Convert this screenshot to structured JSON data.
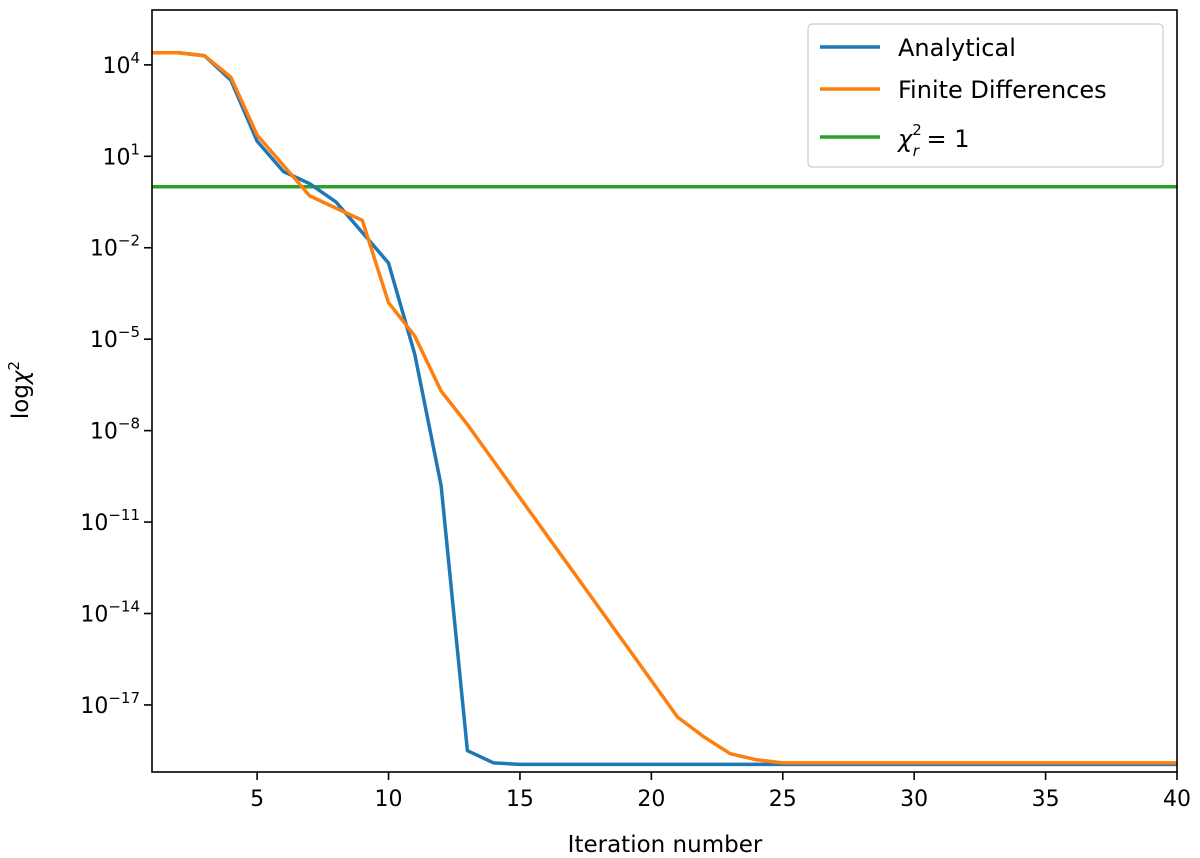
{
  "chart_data": {
    "type": "line",
    "title": "",
    "xlabel": "Iteration number",
    "ylabel": {
      "base": "log",
      "symbol": "χ",
      "exp": "2"
    },
    "y_scale": "log",
    "grid": false,
    "legend_placement": "top-right",
    "xlim": [
      1,
      40
    ],
    "ylim_exponent": [
      -19.2,
      5.8
    ],
    "x_ticks": [
      5,
      10,
      15,
      20,
      25,
      30,
      35,
      40
    ],
    "x_tick_labels": [
      "5",
      "10",
      "15",
      "20",
      "25",
      "30",
      "35",
      "40"
    ],
    "y_ticks": [
      {
        "exp": 4,
        "base": "10",
        "sup": "4"
      },
      {
        "exp": 1,
        "base": "10",
        "sup": "1"
      },
      {
        "exp": -2,
        "base": "10",
        "sup": "−2"
      },
      {
        "exp": -5,
        "base": "10",
        "sup": "−5"
      },
      {
        "exp": -8,
        "base": "10",
        "sup": "−8"
      },
      {
        "exp": -11,
        "base": "10",
        "sup": "−11"
      },
      {
        "exp": -14,
        "base": "10",
        "sup": "−14"
      },
      {
        "exp": -17,
        "base": "10",
        "sup": "−17"
      }
    ],
    "x": [
      1,
      2,
      3,
      4,
      5,
      6,
      7,
      8,
      9,
      10,
      11,
      12,
      13,
      14,
      15,
      16,
      17,
      18,
      19,
      20,
      21,
      22,
      23,
      24,
      25,
      26,
      27,
      28,
      29,
      30,
      31,
      32,
      33,
      34,
      35,
      36,
      37,
      38,
      39,
      40
    ],
    "series": [
      {
        "name": "Analytical",
        "color": "#1f77b4",
        "log10_values": [
          4.4,
          4.4,
          4.3,
          3.5,
          1.5,
          0.5,
          0.1,
          -0.5,
          -1.5,
          -2.5,
          -5.5,
          -9.8,
          -18.5,
          -18.9,
          -18.95,
          -18.95,
          -18.95,
          -18.95,
          -18.95,
          -18.95,
          -18.95,
          -18.95,
          -18.95,
          -18.95,
          -18.95,
          -18.95,
          -18.95,
          -18.95,
          -18.95,
          -18.95,
          -18.95,
          -18.95,
          -18.95,
          -18.95,
          -18.95,
          -18.95,
          -18.95,
          -18.95,
          -18.95,
          -18.95
        ]
      },
      {
        "name": "Finite Differences",
        "color": "#ff7f0e",
        "log10_values": [
          4.4,
          4.4,
          4.3,
          3.6,
          1.7,
          0.7,
          -0.3,
          -0.7,
          -1.1,
          -3.8,
          -4.9,
          -6.7,
          -7.8,
          -9.0,
          -10.2,
          -11.4,
          -12.6,
          -13.8,
          -15.0,
          -16.2,
          -17.4,
          -18.05,
          -18.6,
          -18.8,
          -18.9,
          -18.9,
          -18.9,
          -18.9,
          -18.9,
          -18.9,
          -18.9,
          -18.9,
          -18.9,
          -18.9,
          -18.9,
          -18.9,
          -18.9,
          -18.9,
          -18.9,
          -18.9
        ]
      },
      {
        "name_parts": {
          "base": "χ",
          "sup": "2",
          "sub": "r",
          "rest": " = 1"
        },
        "color": "#2ca02c",
        "log10_constant": 0
      }
    ]
  }
}
